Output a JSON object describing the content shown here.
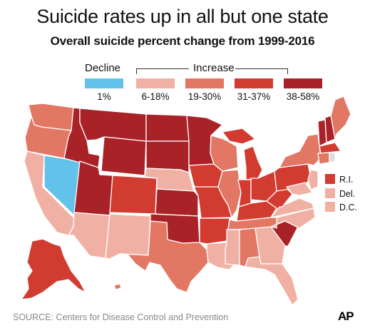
{
  "title": "Suicide rates up in all but one state",
  "subtitle": "Overall suicide percent change from 1999-2016",
  "legend": {
    "decline_header": "Decline",
    "increase_header": "Increase",
    "items": [
      {
        "label": "1%",
        "color": "#63c2ea"
      },
      {
        "label": "6-18%",
        "color": "#f0b1a4"
      },
      {
        "label": "19-30%",
        "color": "#e27764"
      },
      {
        "label": "31-37%",
        "color": "#d23b2f"
      },
      {
        "label": "38-58%",
        "color": "#a82228"
      }
    ]
  },
  "small_states": [
    {
      "label": "R.I.",
      "color": "#d23b2f"
    },
    {
      "label": "Del.",
      "color": "#f0b1a4"
    },
    {
      "label": "D.C.",
      "color": "#f0b1a4"
    }
  ],
  "states": {
    "WA": "19-30%",
    "OR": "19-30%",
    "CA": "6-18%",
    "NV": "1%",
    "ID": "38-58%",
    "MT": "38-58%",
    "WY": "38-58%",
    "UT": "38-58%",
    "AZ": "6-18%",
    "CO": "31-37%",
    "NM": "6-18%",
    "ND": "38-58%",
    "SD": "38-58%",
    "NE": "6-18%",
    "KS": "38-58%",
    "OK": "38-58%",
    "TX": "19-30%",
    "MN": "38-58%",
    "IA": "31-37%",
    "MO": "31-37%",
    "AR": "31-37%",
    "LA": "6-18%",
    "WI": "19-30%",
    "IL": "19-30%",
    "MI": "31-37%",
    "IN": "31-37%",
    "OH": "31-37%",
    "KY": "31-37%",
    "TN": "19-30%",
    "MS": "6-18%",
    "AL": "19-30%",
    "GA": "6-18%",
    "FL": "6-18%",
    "SC": "38-58%",
    "NC": "6-18%",
    "VA": "6-18%",
    "WV": "31-37%",
    "PA": "31-37%",
    "NY": "19-30%",
    "VT": "38-58%",
    "NH": "38-58%",
    "ME": "19-30%",
    "MA": "31-37%",
    "CT": "19-30%",
    "NJ": "6-18%",
    "MD": "6-18%",
    "AK": "31-37%",
    "HI": "19-30%"
  },
  "source": "SOURCE: Centers for Disease Control and Prevention",
  "logo": "AP"
}
